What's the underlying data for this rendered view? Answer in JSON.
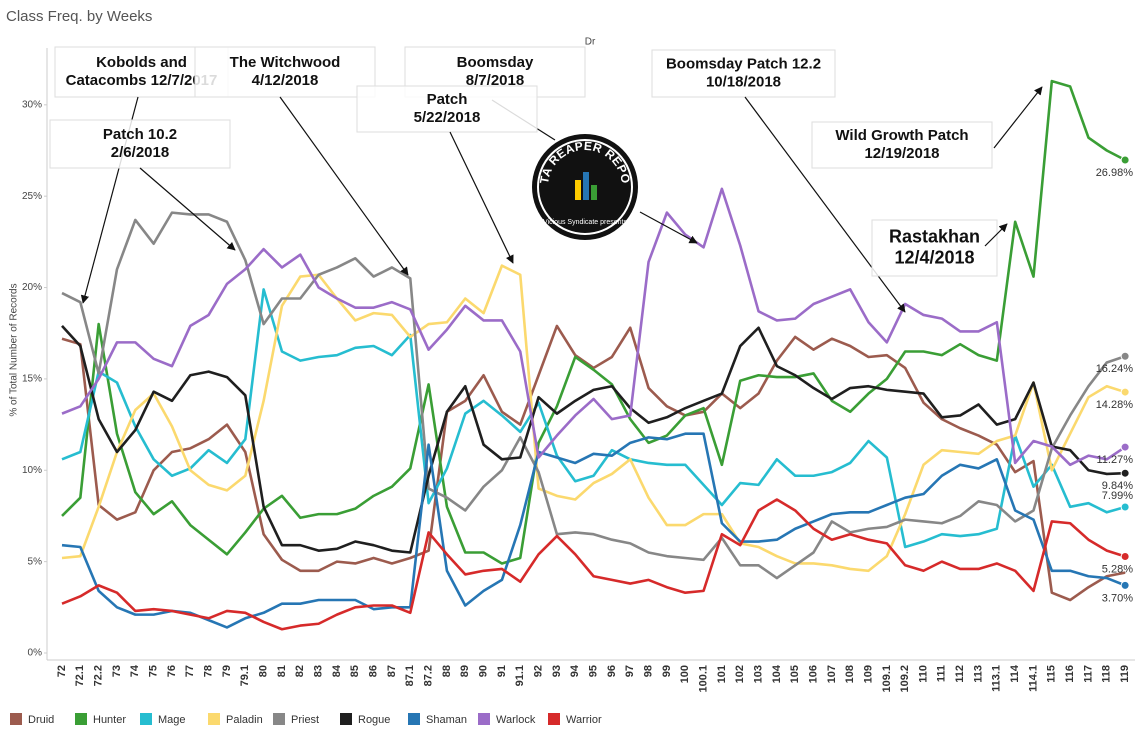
{
  "chart_data": {
    "type": "line",
    "title": "Class Freq. by Weeks",
    "top_label": "Dr",
    "y_label": "% of Total Number of Records",
    "ylim": [
      0,
      33
    ],
    "yticks": [
      {
        "value": 0,
        "label": "0%"
      },
      {
        "value": 5,
        "label": "5%"
      },
      {
        "value": 10,
        "label": "10%"
      },
      {
        "value": 15,
        "label": "15%"
      },
      {
        "value": 20,
        "label": "20%"
      },
      {
        "value": 25,
        "label": "25%"
      },
      {
        "value": 30,
        "label": "30%"
      }
    ],
    "grid": false,
    "categories": [
      "72",
      "72.1",
      "72.2",
      "73",
      "74",
      "75",
      "76",
      "77",
      "78",
      "79",
      "79.1",
      "80",
      "81",
      "82",
      "83",
      "84",
      "85",
      "86",
      "87",
      "87.1",
      "87.2",
      "88",
      "89",
      "90",
      "91",
      "91.1",
      "92",
      "93",
      "94",
      "95",
      "96",
      "97",
      "98",
      "99",
      "100",
      "100.1",
      "101",
      "102",
      "103",
      "104",
      "105",
      "106",
      "107",
      "108",
      "109",
      "109.1",
      "109.2",
      "110",
      "111",
      "112",
      "113",
      "113.1",
      "114",
      "114.1",
      "115",
      "116",
      "117",
      "118",
      "119"
    ],
    "series": [
      {
        "name": "Druid",
        "color": "#9c5b4e",
        "values": [
          17.2,
          16.9,
          8.1,
          7.3,
          7.7,
          10.0,
          11.0,
          11.2,
          11.7,
          12.5,
          11.0,
          6.5,
          5.1,
          4.5,
          4.5,
          5.0,
          4.9,
          5.2,
          4.9,
          5.2,
          5.6,
          13.2,
          13.8,
          15.2,
          13.2,
          12.5,
          15.2,
          17.9,
          16.3,
          15.6,
          16.2,
          17.8,
          14.5,
          13.5,
          13.0,
          13.2,
          14.2,
          13.4,
          14.2,
          16.0,
          17.3,
          16.6,
          17.2,
          16.8,
          16.2,
          16.3,
          15.6,
          13.7,
          12.8,
          12.3,
          11.9,
          11.4,
          9.9,
          10.5,
          3.3,
          2.9,
          3.6,
          4.2,
          4.4
        ]
      },
      {
        "name": "Hunter",
        "color": "#3a9e35",
        "values": [
          7.5,
          8.5,
          18.0,
          12.0,
          8.8,
          7.6,
          8.3,
          7.0,
          6.2,
          5.4,
          6.6,
          7.9,
          8.6,
          7.4,
          7.6,
          7.6,
          7.9,
          8.6,
          9.1,
          10.1,
          14.7,
          8.0,
          5.5,
          5.5,
          4.9,
          5.2,
          11.5,
          13.5,
          16.2,
          15.5,
          14.7,
          12.8,
          11.5,
          11.9,
          13.0,
          13.4,
          10.3,
          14.9,
          15.2,
          15.1,
          15.1,
          15.3,
          13.8,
          13.2,
          14.2,
          15.0,
          16.5,
          16.5,
          16.3,
          16.9,
          16.3,
          16.0,
          23.6,
          20.6,
          31.3,
          31.0,
          28.2,
          27.5,
          26.98
        ],
        "end_label": "26.98%"
      },
      {
        "name": "Mage",
        "color": "#26bdd0",
        "values": [
          10.6,
          11.0,
          15.4,
          14.8,
          12.4,
          10.6,
          9.7,
          10.1,
          11.1,
          10.4,
          11.7,
          19.9,
          16.5,
          16.0,
          16.2,
          16.3,
          16.7,
          16.8,
          16.3,
          17.4,
          8.2,
          10.1,
          13.1,
          13.8,
          13.0,
          12.1,
          13.7,
          10.8,
          9.4,
          9.7,
          11.1,
          10.6,
          10.4,
          10.3,
          10.3,
          9.2,
          8.1,
          9.3,
          9.2,
          10.6,
          9.7,
          9.7,
          9.9,
          10.4,
          11.6,
          10.7,
          5.8,
          6.1,
          6.5,
          6.4,
          6.5,
          6.8,
          11.9,
          9.1,
          10.3,
          8.0,
          8.2,
          7.7,
          7.99
        ],
        "end_label": "7.99%"
      },
      {
        "name": "Paladin",
        "color": "#fbd96e",
        "values": [
          5.2,
          5.3,
          8.0,
          11.0,
          13.3,
          14.2,
          12.4,
          10.0,
          9.2,
          8.9,
          9.7,
          13.8,
          19.0,
          20.6,
          20.7,
          19.4,
          18.2,
          18.6,
          18.5,
          17.3,
          18.0,
          18.1,
          19.4,
          18.6,
          21.2,
          20.7,
          9.0,
          8.6,
          8.4,
          9.3,
          9.8,
          10.6,
          8.5,
          7.0,
          7.0,
          7.6,
          7.6,
          6.0,
          5.8,
          5.3,
          4.9,
          4.9,
          4.8,
          4.6,
          4.5,
          5.3,
          7.6,
          10.3,
          11.1,
          11.0,
          10.9,
          11.6,
          11.9,
          14.8,
          10.0,
          12.0,
          14.0,
          14.6,
          14.28
        ],
        "end_label": "14.28%"
      },
      {
        "name": "Priest",
        "color": "#878787",
        "values": [
          19.7,
          19.2,
          15.3,
          21.0,
          23.7,
          22.4,
          24.1,
          24.0,
          24.0,
          23.6,
          21.5,
          18.0,
          19.4,
          19.4,
          20.7,
          21.1,
          21.6,
          20.6,
          21.1,
          20.5,
          9.0,
          8.5,
          7.8,
          9.1,
          10.0,
          11.8,
          9.9,
          6.5,
          6.6,
          6.5,
          6.2,
          6.0,
          5.5,
          5.3,
          5.2,
          5.1,
          6.3,
          4.8,
          4.8,
          4.1,
          4.8,
          5.5,
          7.2,
          6.6,
          6.8,
          6.9,
          7.3,
          7.2,
          7.1,
          7.5,
          8.3,
          8.1,
          7.2,
          7.8,
          11.2,
          13.0,
          14.6,
          15.9,
          16.24
        ],
        "end_label": "16.24%"
      },
      {
        "name": "Rogue",
        "color": "#1f1f1f",
        "values": [
          17.9,
          16.8,
          12.8,
          11.0,
          12.2,
          14.3,
          13.8,
          15.2,
          15.4,
          15.1,
          14.1,
          8.0,
          5.9,
          5.9,
          5.6,
          5.7,
          6.1,
          5.9,
          5.6,
          5.5,
          9.7,
          13.2,
          14.6,
          11.4,
          10.6,
          10.7,
          14.0,
          13.1,
          13.8,
          14.4,
          14.6,
          13.4,
          12.6,
          12.9,
          13.4,
          13.8,
          14.2,
          16.8,
          17.8,
          15.7,
          15.2,
          14.5,
          13.9,
          14.5,
          14.6,
          14.4,
          14.3,
          14.2,
          12.9,
          13.0,
          13.6,
          12.5,
          12.8,
          14.8,
          11.3,
          11.1,
          10.0,
          9.8,
          9.84
        ],
        "end_label": "9.84%"
      },
      {
        "name": "Shaman",
        "color": "#2676b4",
        "values": [
          5.9,
          5.8,
          3.4,
          2.5,
          2.1,
          2.1,
          2.3,
          2.2,
          1.8,
          1.4,
          1.9,
          2.2,
          2.7,
          2.7,
          2.9,
          2.9,
          2.9,
          2.4,
          2.5,
          2.5,
          11.4,
          4.5,
          2.6,
          3.4,
          4.0,
          7.0,
          11.0,
          10.7,
          10.4,
          10.9,
          10.8,
          11.5,
          11.8,
          11.7,
          12.0,
          12.0,
          7.1,
          6.1,
          6.1,
          6.2,
          6.8,
          7.2,
          7.6,
          7.7,
          7.7,
          8.1,
          8.5,
          8.7,
          9.7,
          10.3,
          10.1,
          10.6,
          7.8,
          7.3,
          4.5,
          4.5,
          4.2,
          4.1,
          3.7
        ],
        "end_label": "3.70%"
      },
      {
        "name": "Warlock",
        "color": "#9b6cc8",
        "values": [
          13.1,
          13.5,
          15.0,
          17.0,
          17.0,
          16.1,
          15.7,
          17.9,
          18.5,
          20.2,
          21.0,
          22.1,
          21.1,
          21.8,
          20.0,
          19.4,
          18.9,
          18.9,
          19.2,
          18.8,
          16.6,
          17.7,
          19.0,
          18.2,
          18.2,
          16.5,
          10.7,
          11.9,
          13.0,
          13.9,
          12.8,
          13.0,
          21.4,
          24.1,
          22.9,
          22.2,
          25.4,
          22.3,
          18.7,
          18.2,
          18.3,
          19.1,
          19.5,
          19.9,
          18.1,
          17.0,
          19.1,
          18.5,
          18.3,
          17.6,
          17.6,
          18.1,
          10.4,
          11.6,
          11.3,
          10.3,
          10.8,
          10.6,
          11.27
        ],
        "end_label": "11.27%"
      },
      {
        "name": "Warrior",
        "color": "#d62a2a",
        "values": [
          2.7,
          3.1,
          3.7,
          3.3,
          2.3,
          2.4,
          2.3,
          2.1,
          1.9,
          2.3,
          2.2,
          1.7,
          1.3,
          1.5,
          1.6,
          2.1,
          2.5,
          2.6,
          2.6,
          2.2,
          6.6,
          5.4,
          4.3,
          4.5,
          4.6,
          3.9,
          5.4,
          6.4,
          5.4,
          4.2,
          4.0,
          3.8,
          4.0,
          3.6,
          3.3,
          3.4,
          6.5,
          5.9,
          7.8,
          8.4,
          7.8,
          6.8,
          6.2,
          6.5,
          6.2,
          6.0,
          4.8,
          4.5,
          5.0,
          4.6,
          4.6,
          4.9,
          4.5,
          3.4,
          7.2,
          7.1,
          6.2,
          5.6,
          5.28
        ],
        "end_label": "5.28%"
      }
    ],
    "annotations": [
      {
        "lines": [
          "Kobolds and",
          "Catacombs 12/7/2017"
        ]
      },
      {
        "lines": [
          "The Witchwood",
          "4/12/2018"
        ]
      },
      {
        "lines": [
          "Boomsday",
          "8/7/2018"
        ]
      },
      {
        "lines": [
          "Patch",
          "5/22/2018"
        ]
      },
      {
        "lines": [
          "Patch 10.2",
          "2/6/2018"
        ]
      },
      {
        "lines": [
          "Boomsday Patch 12.2",
          "10/18/2018"
        ]
      },
      {
        "lines": [
          "Wild Growth Patch",
          "12/19/2018"
        ]
      },
      {
        "lines": [
          "Rastakhan",
          "12/4/2018"
        ]
      }
    ],
    "logo_text": "DATA REAPER REPORT",
    "logo_subtext": "Vicious Syndicate presents"
  }
}
